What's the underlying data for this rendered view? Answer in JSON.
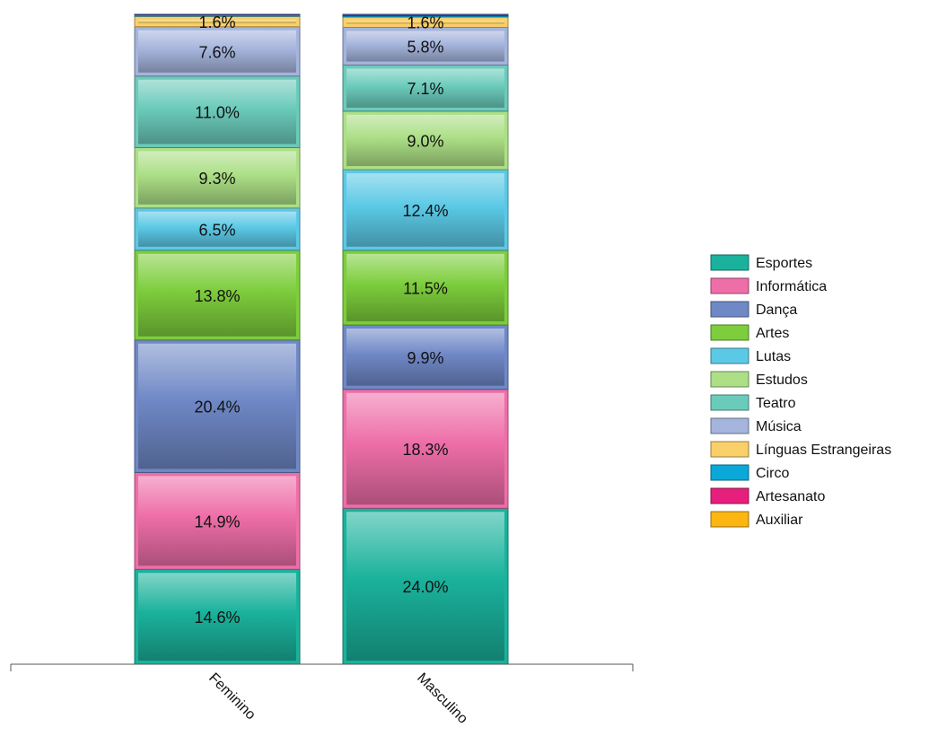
{
  "chart_data": {
    "type": "bar",
    "stacked": true,
    "normalized": true,
    "categories": [
      "Feminino",
      "Masculino"
    ],
    "series": [
      {
        "name": "Esportes",
        "color": "#1ab29c",
        "values": [
          14.6,
          24.0
        ],
        "labels": [
          "14.6%",
          "24.0%"
        ]
      },
      {
        "name": "Informática",
        "color": "#ee6ea8",
        "values": [
          14.9,
          18.3
        ],
        "labels": [
          "14.9%",
          "18.3%"
        ]
      },
      {
        "name": "Dança",
        "color": "#6f88c6",
        "values": [
          20.4,
          9.9
        ],
        "labels": [
          "20.4%",
          "9.9%"
        ]
      },
      {
        "name": "Artes",
        "color": "#7dcd3c",
        "values": [
          13.8,
          11.5
        ],
        "labels": [
          "13.8%",
          "11.5%"
        ]
      },
      {
        "name": "Lutas",
        "color": "#5bc9e6",
        "values": [
          6.5,
          12.4
        ],
        "labels": [
          "6.5%",
          "12.4%"
        ]
      },
      {
        "name": "Estudos",
        "color": "#acdf86",
        "values": [
          9.3,
          9.0
        ],
        "labels": [
          "9.3%",
          "9.0%"
        ]
      },
      {
        "name": "Teatro",
        "color": "#6bcbbb",
        "values": [
          11.0,
          7.1
        ],
        "labels": [
          "11.0%",
          "7.1%"
        ]
      },
      {
        "name": "Música",
        "color": "#a5b4dc",
        "values": [
          7.6,
          5.8
        ],
        "labels": [
          "7.6%",
          "5.8%"
        ]
      },
      {
        "name": "Línguas Estrangeiras",
        "color": "#f9cf69",
        "values": [
          1.6,
          1.6
        ],
        "labels": [
          "1.6%",
          "1.6%"
        ]
      },
      {
        "name": "Circo",
        "color": "#0aa8d8",
        "values": [
          0.1,
          0.2
        ],
        "labels": [
          "",
          ""
        ]
      },
      {
        "name": "Artesanato",
        "color": "#e71f7c",
        "values": [
          0.0,
          0.0
        ],
        "labels": [
          "",
          ""
        ]
      },
      {
        "name": "Auxiliar",
        "color": "#fbb612",
        "values": [
          0.1,
          0.0
        ],
        "labels": [
          "",
          ""
        ]
      },
      {
        "name": "",
        "color": "#4a5aa8",
        "values": [
          0.1,
          0.2
        ],
        "labels": [
          "",
          ""
        ]
      }
    ],
    "ylim": [
      0,
      100
    ],
    "legend_position": "right",
    "grid": false,
    "title": "",
    "xlabel": "",
    "ylabel": ""
  }
}
